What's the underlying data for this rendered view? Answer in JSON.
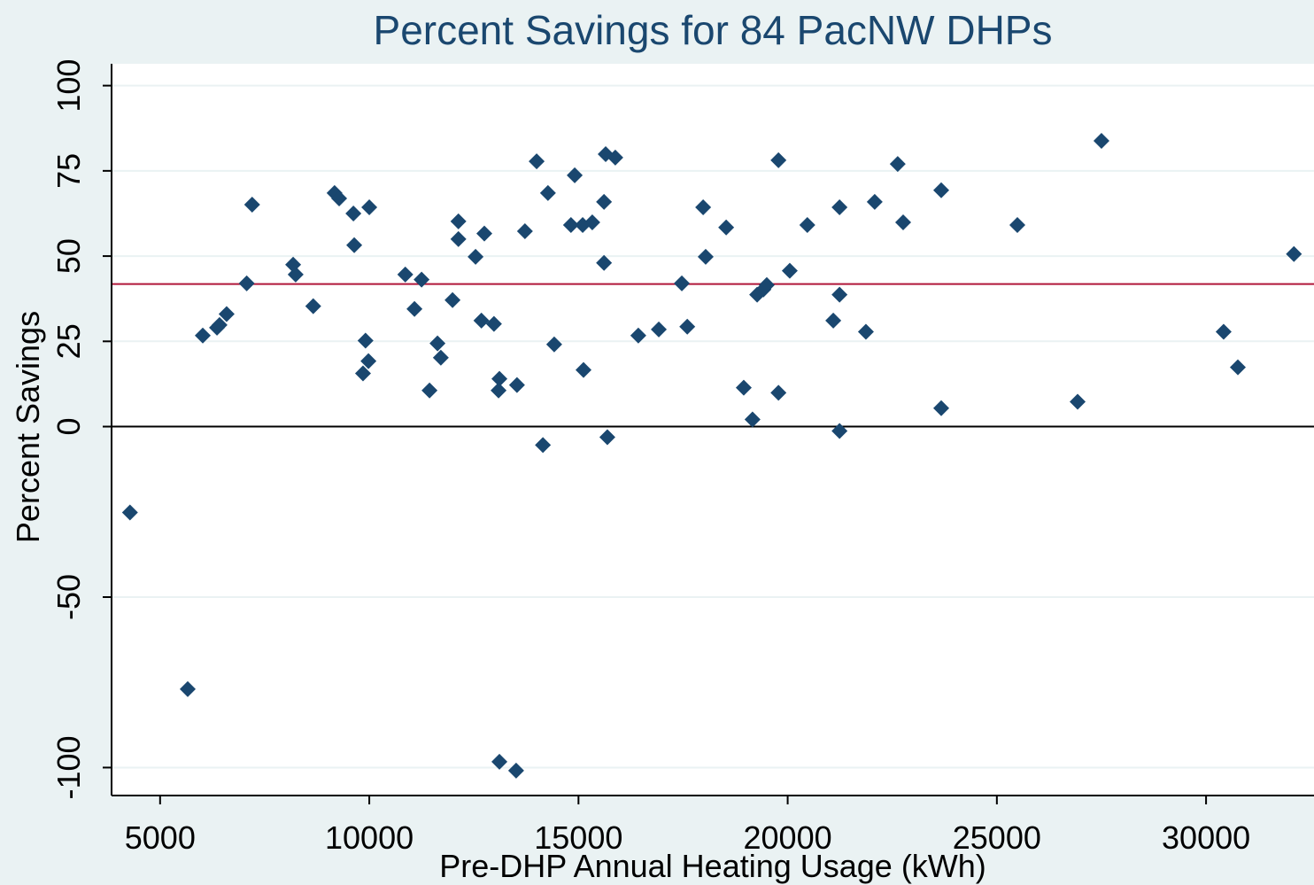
{
  "chart_data": {
    "type": "scatter",
    "title": "Percent Savings for 84 PacNW DHPs",
    "x_label": "Pre-DHP Annual Heating Usage (kWh)",
    "y_label": "Percent Savings",
    "color": "#1a476f",
    "x": [
      4280,
      5660,
      6020,
      6360,
      6420,
      6590,
      7070,
      7200,
      8180,
      8240,
      8660,
      9170,
      9280,
      9620,
      9640,
      10000,
      9910,
      9980,
      9850,
      10860,
      11250,
      11080,
      11440,
      11630,
      11710,
      11990,
      12130,
      12130,
      12540,
      12750,
      12680,
      12980,
      13110,
      13090,
      13110,
      13510,
      13530,
      13720,
      14000,
      14150,
      14270,
      14420,
      14910,
      14820,
      15100,
      15330,
      15120,
      15610,
      15610,
      15650,
      15690,
      15880,
      16430,
      16920,
      17470,
      17600,
      17980,
      18040,
      18530,
      18950,
      19160,
      19270,
      19420,
      19500,
      19780,
      19780,
      20050,
      20470,
      21090,
      21240,
      21240,
      21240,
      21870,
      22080,
      22630,
      22760,
      23670,
      23670,
      25490,
      26930,
      27500,
      30420,
      30760,
      32100
    ],
    "values": [
      -25.2,
      -77,
      26.7,
      29,
      29.8,
      33,
      42,
      65.1,
      47.5,
      44.6,
      35.3,
      68.5,
      66.9,
      62.5,
      53.2,
      64.3,
      25.2,
      19.2,
      15.6,
      44.6,
      43.1,
      34.5,
      10.6,
      24.4,
      20.2,
      37.1,
      60.2,
      55,
      49.8,
      56.6,
      31.1,
      30.1,
      14,
      10.6,
      -98.3,
      -100.9,
      12.2,
      57.3,
      77.8,
      -5.4,
      68.5,
      24.1,
      73.7,
      59.1,
      59.1,
      59.9,
      16.6,
      65.9,
      48,
      79.9,
      -3.1,
      78.9,
      26.7,
      28.5,
      42,
      29.3,
      64.3,
      49.8,
      58.4,
      11.4,
      2.1,
      38.7,
      40.2,
      41.5,
      78.1,
      9.9,
      45.7,
      59.1,
      31.1,
      64.3,
      38.7,
      -1.3,
      27.8,
      65.9,
      77,
      59.9,
      69.3,
      5.4,
      59.1,
      7.3,
      83.8,
      27.8,
      17.4,
      50.6
    ],
    "xlim": [
      3840,
      32580
    ],
    "ylim": [
      -108.2,
      106.4
    ],
    "xticks": [
      5000,
      10000,
      15000,
      20000,
      25000,
      30000
    ],
    "yticks": [
      -100,
      -50,
      0,
      25,
      50,
      75,
      100
    ],
    "grid": true,
    "hlines": [
      {
        "value": 0,
        "color": "#000000"
      },
      {
        "value": 41.8,
        "color": "#b0173a"
      }
    ]
  }
}
